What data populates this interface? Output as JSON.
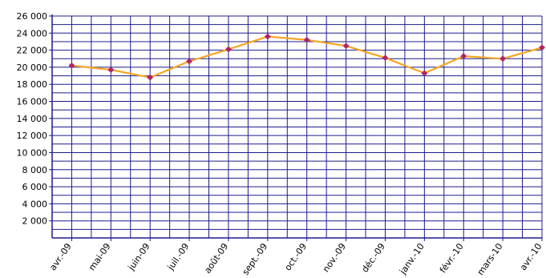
{
  "chart_data": {
    "type": "line",
    "categories": [
      "avr.-09",
      "mai-09",
      "juin-09",
      "juil.-09",
      "août-09",
      "sept.-09",
      "oct.-09",
      "nov.-09",
      "déc.-09",
      "janv.-10",
      "févr.-10",
      "mars-10",
      "avr.-10"
    ],
    "y_tick_labels": [
      "2 000",
      "4 000",
      "6 000",
      "8 000",
      "10 000",
      "12 000",
      "14 000",
      "16 000",
      "18 000",
      "20 000",
      "22 000",
      "24 000",
      "26 000"
    ],
    "series": [
      {
        "values": [
          20200,
          19700,
          18800,
          20700,
          22100,
          23600,
          23200,
          22500,
          21100,
          19300,
          21300,
          21000,
          22300
        ]
      }
    ],
    "ylim": [
      0,
      26000
    ],
    "grid": true,
    "title": "",
    "xlabel": "",
    "ylabel": "",
    "colors": {
      "grid": "#1c1c8c",
      "line": "#f5a623",
      "marker": "#b0246a"
    }
  }
}
